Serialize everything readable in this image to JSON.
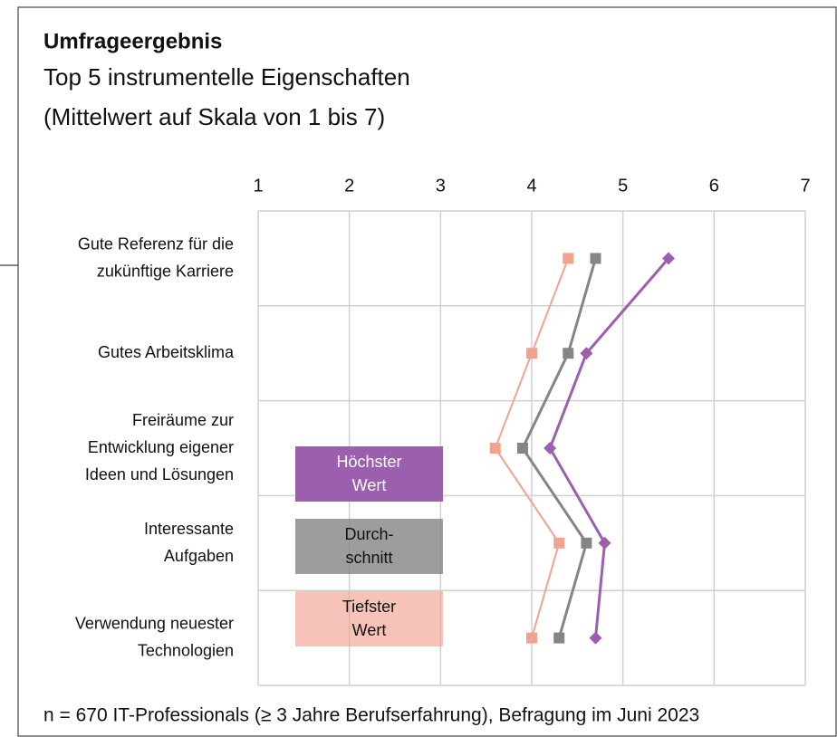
{
  "chart_data": {
    "type": "line",
    "title": "Umfrageergebnis",
    "subtitle": [
      "Top 5 instrumentelle Eigenschaften",
      "(Mittelwert auf Skala von 1 bis 7)"
    ],
    "categories": [
      "Gute Referenz für die\nzukünftige Karriere",
      "Gutes Arbeitsklima",
      "Freiräume zur\nEntwicklung eigener\nIdeen und Lösungen",
      "Interessante\nAufgaben",
      "Verwendung neuester\nTechnologien"
    ],
    "series": [
      {
        "name": "Höchster\nWert",
        "color": "#9c5fae",
        "marker": "diamond",
        "values": [
          5.5,
          4.6,
          4.2,
          4.8,
          4.7
        ]
      },
      {
        "name": "Durch-\nschnitt",
        "color": "#858585",
        "marker": "square",
        "values": [
          4.7,
          4.4,
          3.9,
          4.6,
          4.3
        ]
      },
      {
        "name": "Tiefster\nWert",
        "color": "#f2a290",
        "marker": "square",
        "values": [
          4.4,
          4.0,
          3.6,
          4.3,
          4.0
        ]
      }
    ],
    "xlim": [
      1,
      7
    ],
    "xticks": [
      1,
      2,
      3,
      4,
      5,
      6,
      7
    ],
    "grid": true,
    "footnote": "n = 670 IT-Professionals (≥ 3 Jahre Berufserfahrung), Befragung im Juni 2023"
  }
}
